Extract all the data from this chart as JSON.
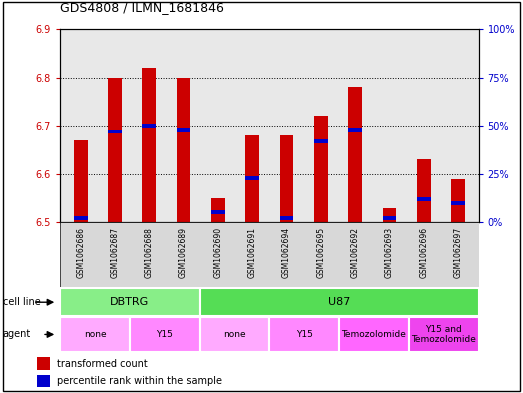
{
  "title": "GDS4808 / ILMN_1681846",
  "samples": [
    "GSM1062686",
    "GSM1062687",
    "GSM1062688",
    "GSM1062689",
    "GSM1062690",
    "GSM1062691",
    "GSM1062694",
    "GSM1062695",
    "GSM1062692",
    "GSM1062693",
    "GSM1062696",
    "GSM1062697"
  ],
  "transformed_count": [
    6.67,
    6.8,
    6.82,
    6.8,
    6.55,
    6.68,
    6.68,
    6.72,
    6.78,
    6.53,
    6.63,
    6.59
  ],
  "percentile_rank": [
    0.02,
    0.47,
    0.5,
    0.48,
    0.05,
    0.23,
    0.02,
    0.42,
    0.48,
    0.02,
    0.12,
    0.1
  ],
  "ylim_left": [
    6.5,
    6.9
  ],
  "ylim_right": [
    0,
    100
  ],
  "yticks_left": [
    6.5,
    6.6,
    6.7,
    6.8,
    6.9
  ],
  "yticks_right": [
    0,
    25,
    50,
    75,
    100
  ],
  "cell_line_groups": [
    {
      "label": "DBTRG",
      "start": 0,
      "end": 3,
      "color": "#88ee88"
    },
    {
      "label": "U87",
      "start": 4,
      "end": 11,
      "color": "#55dd55"
    }
  ],
  "agent_groups": [
    {
      "label": "none",
      "start": 0,
      "end": 1,
      "color": "#ffaaff"
    },
    {
      "label": "Y15",
      "start": 2,
      "end": 3,
      "color": "#ff88ff"
    },
    {
      "label": "none",
      "start": 4,
      "end": 5,
      "color": "#ffaaff"
    },
    {
      "label": "Y15",
      "start": 6,
      "end": 7,
      "color": "#ff88ff"
    },
    {
      "label": "Temozolomide",
      "start": 8,
      "end": 9,
      "color": "#ff66ff"
    },
    {
      "label": "Y15 and\nTemozolomide",
      "start": 10,
      "end": 11,
      "color": "#ee44ee"
    }
  ],
  "bar_color": "#cc0000",
  "blue_color": "#0000cc",
  "bar_width": 0.4,
  "base_value": 6.5,
  "chart_bg": "#e8e8e8",
  "left_tick_color": "#cc0000",
  "right_tick_color": "#0000cc"
}
